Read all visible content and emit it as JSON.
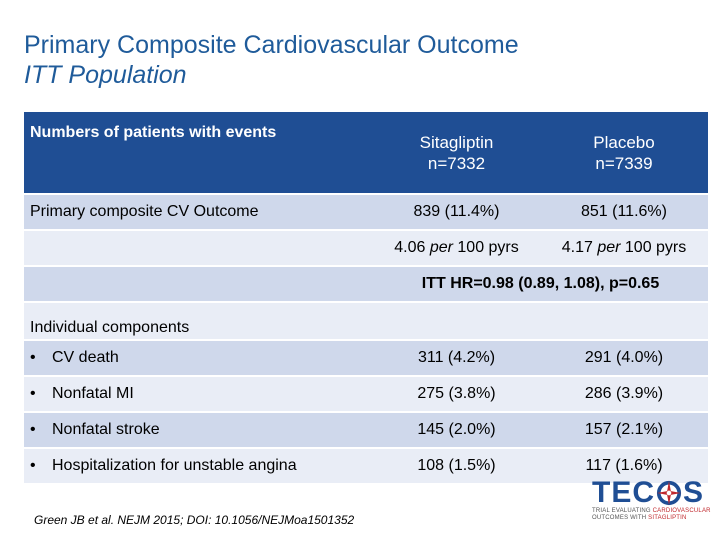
{
  "title": {
    "line1": "Primary Composite Cardiovascular Outcome",
    "line2": "ITT Population"
  },
  "table": {
    "header": {
      "label": "Numbers of patients with events",
      "col1_name": "Sitagliptin",
      "col1_n": "n=7332",
      "col2_name": "Placebo",
      "col2_n": "n=7339"
    },
    "primary": {
      "label": "Primary composite CV Outcome",
      "col1": "839 (11.4%)",
      "col2": "851 (11.6%)"
    },
    "rate": {
      "col1_a": "4.06",
      "col1_per": "per",
      "col1_b": "100 pyrs",
      "col2_a": "4.17",
      "col2_per": "per",
      "col2_b": "100 pyrs"
    },
    "hr": "ITT HR=0.98 (0.89, 1.08), p=0.65",
    "components_label": "Individual components",
    "bullet": "•",
    "components": [
      {
        "label": "CV death",
        "col1": "311 (4.2%)",
        "col2": "291 (4.0%)"
      },
      {
        "label": "Nonfatal MI",
        "col1": "275 (3.8%)",
        "col2": "286 (3.9%)"
      },
      {
        "label": "Nonfatal stroke",
        "col1": "145 (2.0%)",
        "col2": "157 (2.1%)"
      },
      {
        "label": "Hospitalization for unstable angina",
        "col1": "108 (1.5%)",
        "col2": "117 (1.6%)"
      }
    ]
  },
  "footnote": "Green JB et al. NEJM 2015; DOI: 10.1056/NEJMoa1501352",
  "logo": {
    "word_left": "TEC",
    "word_right": "S",
    "tagline1_a": "TRIAL EVALUATING ",
    "tagline1_b": "CARDIOVASCULAR",
    "tagline2_a": "OUTCOMES WITH ",
    "tagline2_b": "SITAGLIPTIN"
  },
  "colors": {
    "title": "#1f5b9a",
    "header_bg": "#1f4e94",
    "row_dark": "#cfd8eb",
    "row_light": "#e9edf6",
    "logo_red": "#c0282d"
  }
}
